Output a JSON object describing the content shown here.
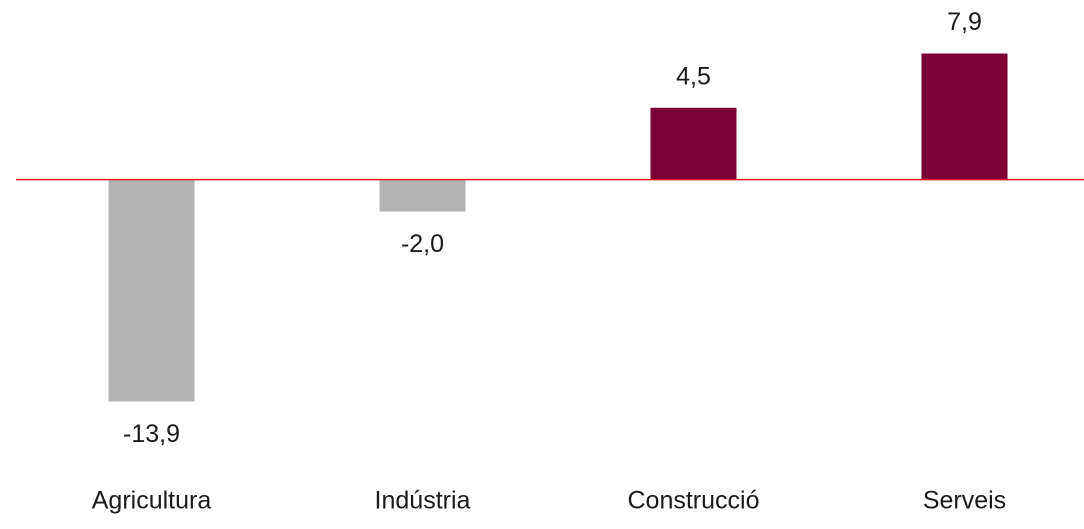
{
  "chart_data": {
    "type": "bar",
    "categories": [
      "Agricultura",
      "Indústria",
      "Construcció",
      "Serveis"
    ],
    "values": [
      -13.9,
      -2.0,
      4.5,
      7.9
    ],
    "value_labels": [
      "-13,9",
      "-2,0",
      "4,5",
      "7,9"
    ],
    "colors": [
      "#b3b3b3",
      "#b3b3b3",
      "#7a0036",
      "#7a0036"
    ],
    "ylim": [
      -16,
      10
    ]
  }
}
